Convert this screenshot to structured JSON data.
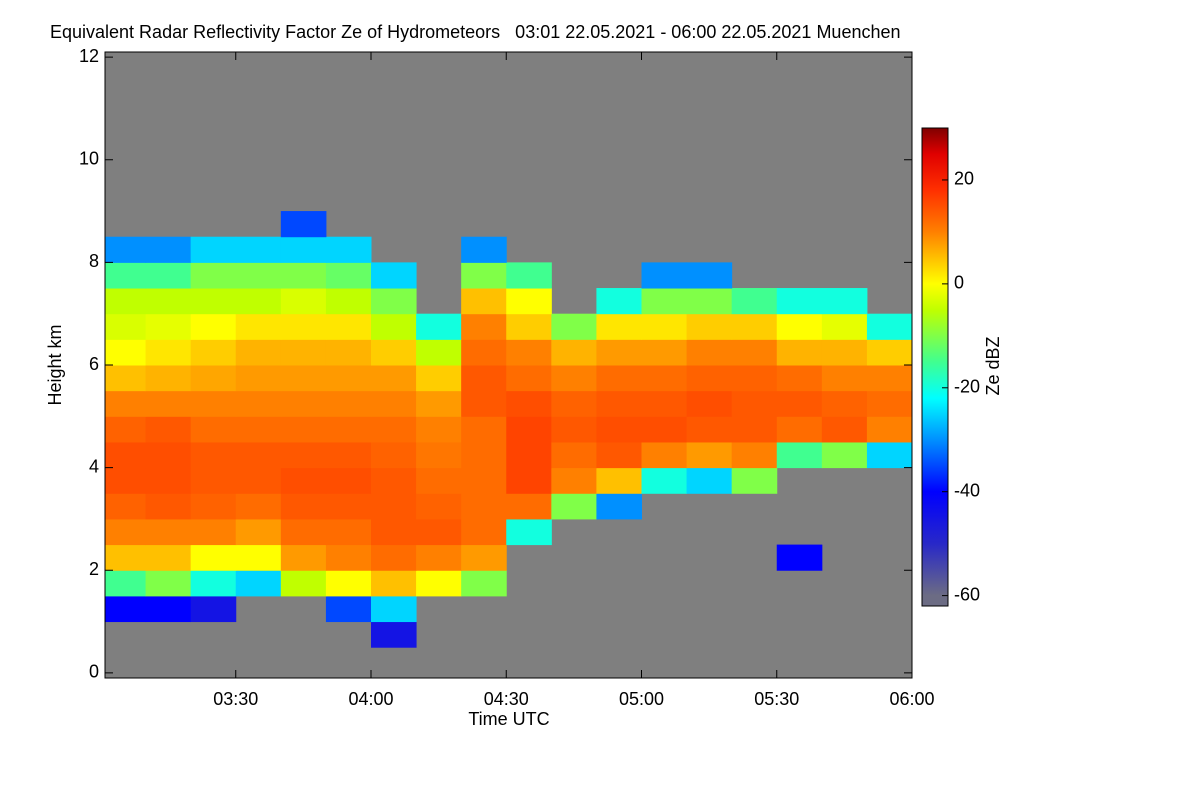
{
  "chart_data": {
    "type": "heatmap",
    "title": "Equivalent Radar Reflectivity Factor Ze of Hydrometeors   03:01 22.05.2021 - 06:00 22.05.2021 Muenchen",
    "xlabel": "Time UTC",
    "ylabel": "Height km",
    "colorbar_label": "Ze dBZ",
    "background": "#7f7f7f",
    "xlim": [
      181,
      360
    ],
    "ylim": [
      -0.1,
      12.1
    ],
    "xticks": [
      {
        "value": 210,
        "label": "03:30"
      },
      {
        "value": 240,
        "label": "04:00"
      },
      {
        "value": 270,
        "label": "04:30"
      },
      {
        "value": 300,
        "label": "05:00"
      },
      {
        "value": 330,
        "label": "05:30"
      },
      {
        "value": 360,
        "label": "06:00"
      }
    ],
    "yticks": [
      0,
      2,
      4,
      6,
      8,
      10,
      12
    ],
    "zlim": [
      -62,
      30
    ],
    "zticks": [
      -60,
      -40,
      -20,
      0,
      20
    ],
    "colormap": [
      {
        "value": -60,
        "color": "#6c6c84"
      },
      {
        "value": -50,
        "color": "#2828c8"
      },
      {
        "value": -40,
        "color": "#0000ff"
      },
      {
        "value": -30,
        "color": "#0090ff"
      },
      {
        "value": -22,
        "color": "#00ffff"
      },
      {
        "value": -15,
        "color": "#40ff90"
      },
      {
        "value": -5,
        "color": "#c0ff00"
      },
      {
        "value": 0,
        "color": "#ffff00"
      },
      {
        "value": 5,
        "color": "#ffc000"
      },
      {
        "value": 10,
        "color": "#ff8000"
      },
      {
        "value": 18,
        "color": "#ff3000"
      },
      {
        "value": 25,
        "color": "#e00000"
      },
      {
        "value": 30,
        "color": "#800000"
      }
    ],
    "x_bins": [
      181,
      190,
      200,
      210,
      220,
      230,
      240,
      250,
      260,
      270,
      280,
      290,
      300,
      310,
      320,
      330,
      340,
      350,
      360
    ],
    "y_bins": [
      0,
      0.5,
      1,
      1.5,
      2,
      2.5,
      3,
      3.5,
      4,
      4.5,
      5,
      5.5,
      6,
      6.5,
      7,
      7.5,
      8,
      8.5,
      9
    ],
    "values": [
      [
        null,
        null,
        null,
        null,
        null,
        null,
        null,
        null,
        null,
        null,
        null,
        null,
        null,
        null,
        null,
        null,
        null,
        null
      ],
      [
        null,
        null,
        null,
        null,
        null,
        null,
        -45,
        null,
        null,
        null,
        null,
        null,
        null,
        null,
        null,
        null,
        null,
        null
      ],
      [
        -40,
        -40,
        -45,
        null,
        null,
        -35,
        -25,
        null,
        null,
        null,
        null,
        null,
        null,
        null,
        null,
        null,
        null,
        null
      ],
      [
        -15,
        -10,
        -20,
        -25,
        -5,
        0,
        5,
        0,
        -10,
        null,
        null,
        null,
        null,
        null,
        null,
        null,
        null,
        null
      ],
      [
        5,
        5,
        0,
        0,
        8,
        10,
        12,
        10,
        8,
        null,
        null,
        null,
        null,
        null,
        null,
        -40,
        null,
        null
      ],
      [
        10,
        10,
        10,
        8,
        12,
        12,
        14,
        14,
        12,
        -20,
        null,
        null,
        null,
        null,
        null,
        null,
        null,
        null
      ],
      [
        13,
        14,
        13,
        12,
        14,
        14,
        14,
        13,
        12,
        12,
        -10,
        -30,
        null,
        null,
        null,
        null,
        null,
        null
      ],
      [
        15,
        15,
        14,
        14,
        15,
        15,
        14,
        12,
        12,
        16,
        10,
        5,
        -20,
        -25,
        -10,
        null,
        null,
        null
      ],
      [
        15,
        15,
        14,
        14,
        14,
        14,
        13,
        11,
        12,
        16,
        12,
        14,
        10,
        8,
        10,
        -15,
        -10,
        -25
      ],
      [
        13,
        14,
        12,
        12,
        12,
        12,
        12,
        10,
        12,
        16,
        14,
        15,
        15,
        14,
        14,
        12,
        14,
        10
      ],
      [
        10,
        10,
        10,
        10,
        10,
        10,
        10,
        8,
        14,
        15,
        13,
        14,
        14,
        15,
        14,
        14,
        13,
        12
      ],
      [
        5,
        6,
        7,
        8,
        8,
        8,
        8,
        4,
        14,
        12,
        10,
        12,
        12,
        13,
        13,
        12,
        10,
        10
      ],
      [
        0,
        2,
        4,
        6,
        6,
        6,
        4,
        -5,
        12,
        10,
        6,
        8,
        8,
        10,
        10,
        6,
        6,
        4
      ],
      [
        -3,
        -2,
        0,
        2,
        2,
        2,
        -5,
        -20,
        10,
        4,
        -10,
        2,
        2,
        4,
        4,
        0,
        -2,
        -20
      ],
      [
        -5,
        -5,
        -5,
        -5,
        -3,
        -5,
        -10,
        null,
        5,
        0,
        null,
        -20,
        -10,
        -10,
        -15,
        -20,
        -20,
        null
      ],
      [
        -15,
        -15,
        -10,
        -10,
        -10,
        -12,
        -25,
        null,
        -10,
        -15,
        null,
        null,
        -30,
        -30,
        null,
        null,
        null,
        null
      ],
      [
        -30,
        -30,
        -25,
        -25,
        -25,
        -25,
        null,
        null,
        -30,
        null,
        null,
        null,
        null,
        null,
        null,
        null,
        null,
        null
      ],
      [
        null,
        null,
        null,
        null,
        -35,
        null,
        null,
        null,
        null,
        null,
        null,
        null,
        null,
        null,
        null,
        null,
        null,
        null
      ]
    ]
  }
}
